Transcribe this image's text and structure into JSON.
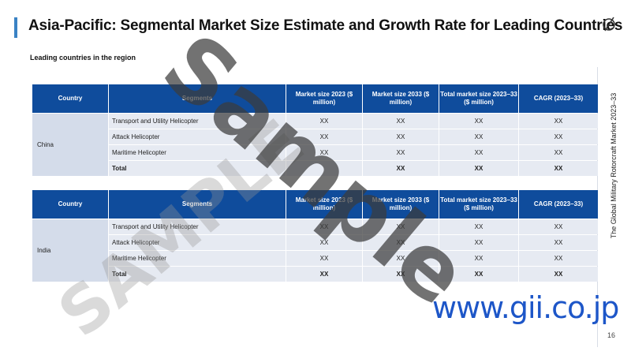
{
  "slide": {
    "title": "Asia-Pacific: Segmental Market Size Estimate and Growth Rate for Leading Countries",
    "subtitle": "Leading countries in the region",
    "side_text": "The Global Military Rotorcraft Market 2023–33",
    "page_number": "16",
    "logo_icon": "circle-slash-logo-icon"
  },
  "headers": {
    "country": "Country",
    "segments": "Segments",
    "market_size": "Market size 2023 ($ million)",
    "market_size_2033": "Market size 2033 ($ million)",
    "total_market": "Total market size 2023–33 ($ million)",
    "cagr": "CAGR (2023–33)"
  },
  "tables": [
    {
      "country": "China",
      "rows": [
        {
          "segment": "Transport and Utility Helicopter",
          "v1": "XX",
          "v2": "XX",
          "v3": "XX",
          "v4": "XX"
        },
        {
          "segment": "Attack Helicopter",
          "v1": "XX",
          "v2": "XX",
          "v3": "XX",
          "v4": "XX"
        },
        {
          "segment": "Maritime Helicopter",
          "v1": "XX",
          "v2": "XX",
          "v3": "XX",
          "v4": "XX"
        },
        {
          "segment": "Total",
          "v1": "",
          "v2": "XX",
          "v3": "XX",
          "v4": "XX"
        }
      ]
    },
    {
      "country": "India",
      "rows": [
        {
          "segment": "Transport and Utility Helicopter",
          "v1": "XX",
          "v2": "XX",
          "v3": "XX",
          "v4": "XX"
        },
        {
          "segment": "Attack Helicopter",
          "v1": "XX",
          "v2": "XX",
          "v3": "XX",
          "v4": "XX"
        },
        {
          "segment": "Maritime Helicopter",
          "v1": "XX",
          "v2": "XX",
          "v3": "XX",
          "v4": "XX"
        },
        {
          "segment": "Total",
          "v1": "XX",
          "v2": "XX",
          "v3": "XX",
          "v4": "XX"
        }
      ]
    }
  ],
  "watermarks": {
    "sample": "Sample",
    "sample_caps": "SAMPLE",
    "url": "www.gii.co.jp"
  },
  "colors": {
    "header_bg": "#0f4c9c",
    "cell_bg": "#e6eaf2",
    "accent": "#3a82c4",
    "url": "#1d56c8"
  }
}
